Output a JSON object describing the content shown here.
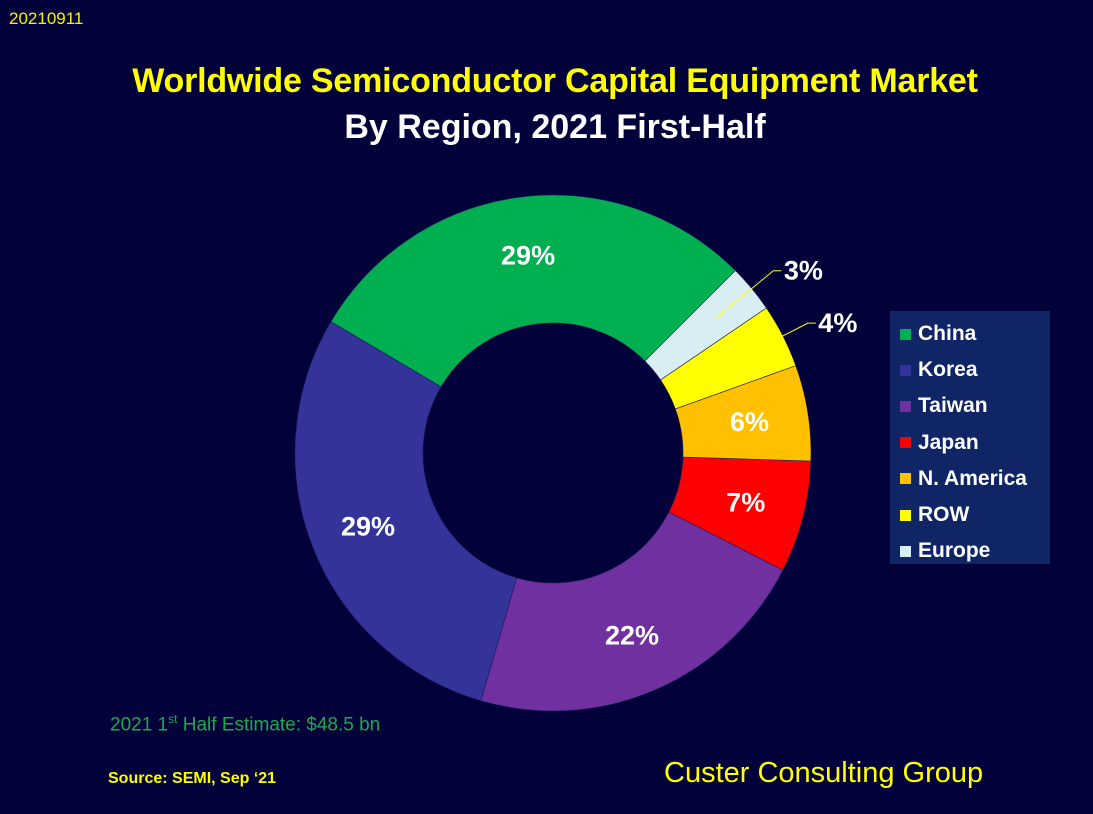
{
  "date_stamp": "20210911",
  "footer": {
    "estimate_prefix": "2021 1",
    "estimate_sup": "st",
    "estimate_suffix": " Half Estimate: $48.5 bn",
    "source": "Source: SEMI, Sep ‘21",
    "brand": "Custer Consulting Group"
  },
  "chart_data": {
    "type": "pie",
    "donut": true,
    "title": "Worldwide Semiconductor Capital Equipment Market",
    "subtitle": "By Region, 2021 First-Half",
    "legend_position": "right",
    "slices": [
      {
        "name": "China",
        "value": 29,
        "label": "29%",
        "color": "#00b050"
      },
      {
        "name": "Korea",
        "value": 29,
        "label": "29%",
        "color": "#333399"
      },
      {
        "name": "Taiwan",
        "value": 22,
        "label": "22%",
        "color": "#7030a0"
      },
      {
        "name": "Japan",
        "value": 7,
        "label": "7%",
        "color": "#ff0000"
      },
      {
        "name": "N. America",
        "value": 6,
        "label": "6%",
        "color": "#ffc000"
      },
      {
        "name": "ROW",
        "value": 4,
        "label": "4%",
        "color": "#ffff00"
      },
      {
        "name": "Europe",
        "value": 3,
        "label": "3%",
        "color": "#d9eef2"
      }
    ]
  }
}
